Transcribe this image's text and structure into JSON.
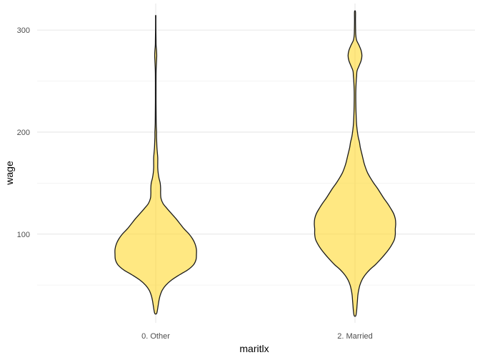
{
  "chart_data": {
    "type": "violin",
    "xlabel": "maritlx",
    "ylabel": "wage",
    "categories": [
      "0. Other",
      "2. Married"
    ],
    "ylim": [
      13,
      326
    ],
    "y_ticks": [
      100,
      200,
      300
    ],
    "y_minor_ticks": [
      50,
      150,
      250
    ],
    "grid": true,
    "legend": "none",
    "fill_color": "#FFD92F",
    "fill_opacity": 0.6,
    "outline_color": "#1a1a1a",
    "violins": [
      {
        "category": "0. Other",
        "profile": [
          [
            22,
            0.02
          ],
          [
            25,
            0.04
          ],
          [
            30,
            0.06
          ],
          [
            35,
            0.08
          ],
          [
            40,
            0.11
          ],
          [
            45,
            0.16
          ],
          [
            50,
            0.25
          ],
          [
            55,
            0.39
          ],
          [
            60,
            0.58
          ],
          [
            65,
            0.79
          ],
          [
            70,
            0.93
          ],
          [
            75,
            0.99
          ],
          [
            80,
            1.0
          ],
          [
            85,
            1.0
          ],
          [
            90,
            0.97
          ],
          [
            95,
            0.91
          ],
          [
            100,
            0.82
          ],
          [
            105,
            0.7
          ],
          [
            110,
            0.6
          ],
          [
            115,
            0.5
          ],
          [
            120,
            0.39
          ],
          [
            125,
            0.28
          ],
          [
            130,
            0.18
          ],
          [
            135,
            0.13
          ],
          [
            140,
            0.12
          ],
          [
            145,
            0.12
          ],
          [
            150,
            0.11
          ],
          [
            155,
            0.08
          ],
          [
            160,
            0.06
          ],
          [
            165,
            0.05
          ],
          [
            170,
            0.05
          ],
          [
            175,
            0.05
          ],
          [
            180,
            0.04
          ],
          [
            185,
            0.03
          ],
          [
            190,
            0.025
          ],
          [
            195,
            0.02
          ],
          [
            200,
            0.02
          ],
          [
            205,
            0.015
          ],
          [
            210,
            0.012
          ],
          [
            220,
            0.01
          ],
          [
            230,
            0.008
          ],
          [
            240,
            0.008
          ],
          [
            250,
            0.008
          ],
          [
            260,
            0.01
          ],
          [
            270,
            0.02
          ],
          [
            275,
            0.025
          ],
          [
            280,
            0.02
          ],
          [
            285,
            0.01
          ],
          [
            290,
            0.008
          ],
          [
            300,
            0.005
          ],
          [
            310,
            0.004
          ],
          [
            314,
            0.004
          ]
        ]
      },
      {
        "category": "2. Married",
        "profile": [
          [
            20,
            0.02
          ],
          [
            25,
            0.04
          ],
          [
            30,
            0.05
          ],
          [
            35,
            0.06
          ],
          [
            40,
            0.07
          ],
          [
            45,
            0.09
          ],
          [
            50,
            0.12
          ],
          [
            55,
            0.17
          ],
          [
            60,
            0.25
          ],
          [
            65,
            0.36
          ],
          [
            70,
            0.5
          ],
          [
            75,
            0.62
          ],
          [
            80,
            0.73
          ],
          [
            85,
            0.83
          ],
          [
            90,
            0.91
          ],
          [
            95,
            0.97
          ],
          [
            100,
            0.99
          ],
          [
            105,
            0.99
          ],
          [
            110,
            1.0
          ],
          [
            115,
            0.99
          ],
          [
            120,
            0.95
          ],
          [
            125,
            0.88
          ],
          [
            130,
            0.8
          ],
          [
            135,
            0.71
          ],
          [
            140,
            0.63
          ],
          [
            145,
            0.55
          ],
          [
            150,
            0.46
          ],
          [
            155,
            0.38
          ],
          [
            160,
            0.31
          ],
          [
            165,
            0.26
          ],
          [
            170,
            0.22
          ],
          [
            175,
            0.19
          ],
          [
            180,
            0.16
          ],
          [
            185,
            0.13
          ],
          [
            190,
            0.11
          ],
          [
            195,
            0.08
          ],
          [
            200,
            0.06
          ],
          [
            205,
            0.045
          ],
          [
            210,
            0.035
          ],
          [
            220,
            0.025
          ],
          [
            230,
            0.02
          ],
          [
            240,
            0.02
          ],
          [
            250,
            0.03
          ],
          [
            255,
            0.04
          ],
          [
            260,
            0.05
          ],
          [
            265,
            0.1
          ],
          [
            270,
            0.15
          ],
          [
            275,
            0.17
          ],
          [
            280,
            0.15
          ],
          [
            285,
            0.1
          ],
          [
            290,
            0.04
          ],
          [
            295,
            0.02
          ],
          [
            300,
            0.015
          ],
          [
            310,
            0.012
          ],
          [
            318,
            0.012
          ]
        ]
      }
    ]
  }
}
